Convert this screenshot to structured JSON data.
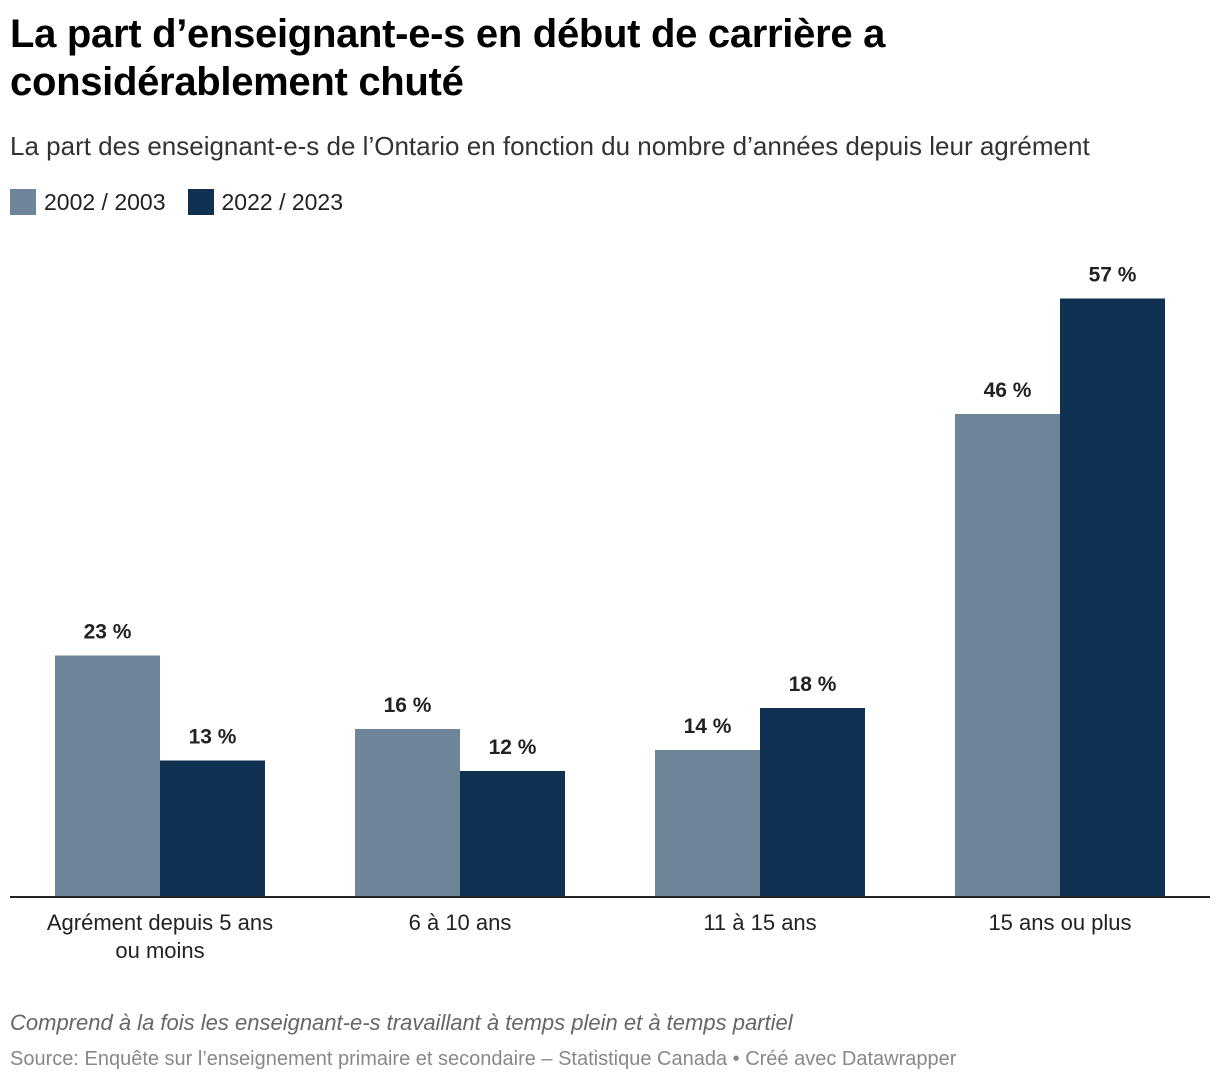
{
  "title": "La part d’enseignant-e-s en début de carrière a considérablement chuté",
  "subtitle": "La part des enseignant-e-s de l’Ontario en fonction du nombre d’années depuis leur agrément",
  "legend": [
    {
      "label": "2002 / 2003",
      "color": "#6e8498"
    },
    {
      "label": "2022 / 2023",
      "color": "#113152"
    }
  ],
  "notes": "Comprend à la fois les enseignant-e-s travaillant à temps plein et à temps partiel",
  "source": "Source: Enquête sur l’enseignement primaire et secondaire – Statistique Canada  • Créé avec Datawrapper",
  "chart_data": {
    "type": "bar",
    "categories": [
      [
        "Agrément depuis 5 ans",
        "ou moins"
      ],
      [
        "6 à 10 ans"
      ],
      [
        "11 à 15 ans"
      ],
      [
        "15 ans ou plus"
      ]
    ],
    "series": [
      {
        "name": "2002 / 2003",
        "color": "#6e8498",
        "values": [
          23,
          16,
          14,
          46
        ],
        "labels": [
          "23 %",
          "16 %",
          "14 %",
          "46 %"
        ]
      },
      {
        "name": "2022 / 2023",
        "color": "#113152",
        "values": [
          13,
          12,
          18,
          57
        ],
        "labels": [
          "13 %",
          "12 %",
          "18 %",
          "57 %"
        ]
      }
    ],
    "ylim": [
      0,
      57
    ],
    "grid": false,
    "legend_position": "top-left"
  }
}
